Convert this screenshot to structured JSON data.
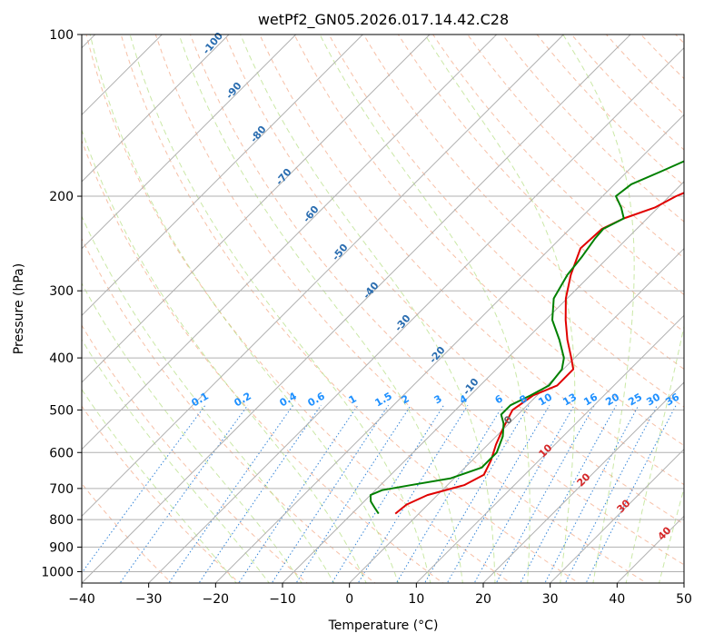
{
  "chart_data": {
    "type": "line",
    "title": "wetPf2_GN05.2026.017.14.42.C28",
    "xlabel": "Temperature (°C)",
    "ylabel": "Pressure (hPa)",
    "xlim": [
      -40,
      50
    ],
    "ylim": [
      1050,
      100
    ],
    "y_scale": "log",
    "grid": true,
    "x_ticks": [
      -40,
      -30,
      -20,
      -10,
      0,
      10,
      20,
      30,
      40,
      50
    ],
    "y_ticks": [
      100,
      200,
      300,
      400,
      500,
      600,
      700,
      800,
      900,
      1000
    ],
    "series": [
      {
        "color": "#e00000",
        "p": [
          780,
          750,
          720,
          690,
          660,
          620,
          580,
          540,
          500,
          470,
          450,
          420,
          400,
          370,
          340,
          310,
          280,
          250,
          230,
          220,
          210,
          200,
          190,
          180,
          170,
          160,
          150,
          140,
          130,
          120,
          110,
          100
        ],
        "t": [
          -3.5,
          -3.2,
          -1.5,
          2.5,
          3.9,
          2.8,
          1.2,
          -0.2,
          -1.5,
          -0.6,
          1.5,
          1.5,
          -0.5,
          -3.8,
          -7.0,
          -10.2,
          -13.0,
          -15.5,
          -15.2,
          -13.5,
          -10.5,
          -9.0,
          -6.5,
          -4.5,
          -3.0,
          -1.5,
          0.3,
          2.5,
          4.0,
          5.0,
          5.5,
          6.5
        ]
      },
      {
        "color": "#008000",
        "p": [
          780,
          760,
          740,
          720,
          705,
          690,
          670,
          640,
          600,
          560,
          530,
          510,
          490,
          470,
          450,
          420,
          400,
          370,
          340,
          310,
          280,
          260,
          240,
          230,
          220,
          210,
          200,
          190,
          180,
          170,
          160,
          150,
          140,
          130,
          120,
          110,
          100
        ],
        "td": [
          -6.0,
          -7.5,
          -9.0,
          -10.0,
          -9.0,
          -5.5,
          -0.5,
          2.5,
          2.5,
          1.0,
          -0.8,
          -2.5,
          -2.5,
          -1.0,
          0.3,
          -0.2,
          -1.6,
          -5.0,
          -9.0,
          -12.0,
          -13.5,
          -14.0,
          -14.8,
          -15.0,
          -13.5,
          -15.5,
          -18.0,
          -17.5,
          -15.0,
          -12.5,
          -12.0,
          -12.0,
          -11.0,
          -9.0,
          -7.0,
          -4.0,
          -2.5
        ]
      }
    ],
    "dry_adiabat_labels": [
      "-100",
      "-90",
      "-80",
      "-70",
      "-60",
      "-50",
      "-40",
      "-30",
      "-20",
      "-10"
    ],
    "mixing_ratio_labels": [
      "0.1",
      "0.2",
      "0.4",
      "0.6",
      "1",
      "1.5",
      "2",
      "3",
      "4",
      "6",
      "8",
      "10",
      "13",
      "16",
      "20",
      "25",
      "30",
      "36"
    ],
    "moist_adiabat_labels": [
      "0",
      "10",
      "20",
      "30",
      "40"
    ]
  }
}
